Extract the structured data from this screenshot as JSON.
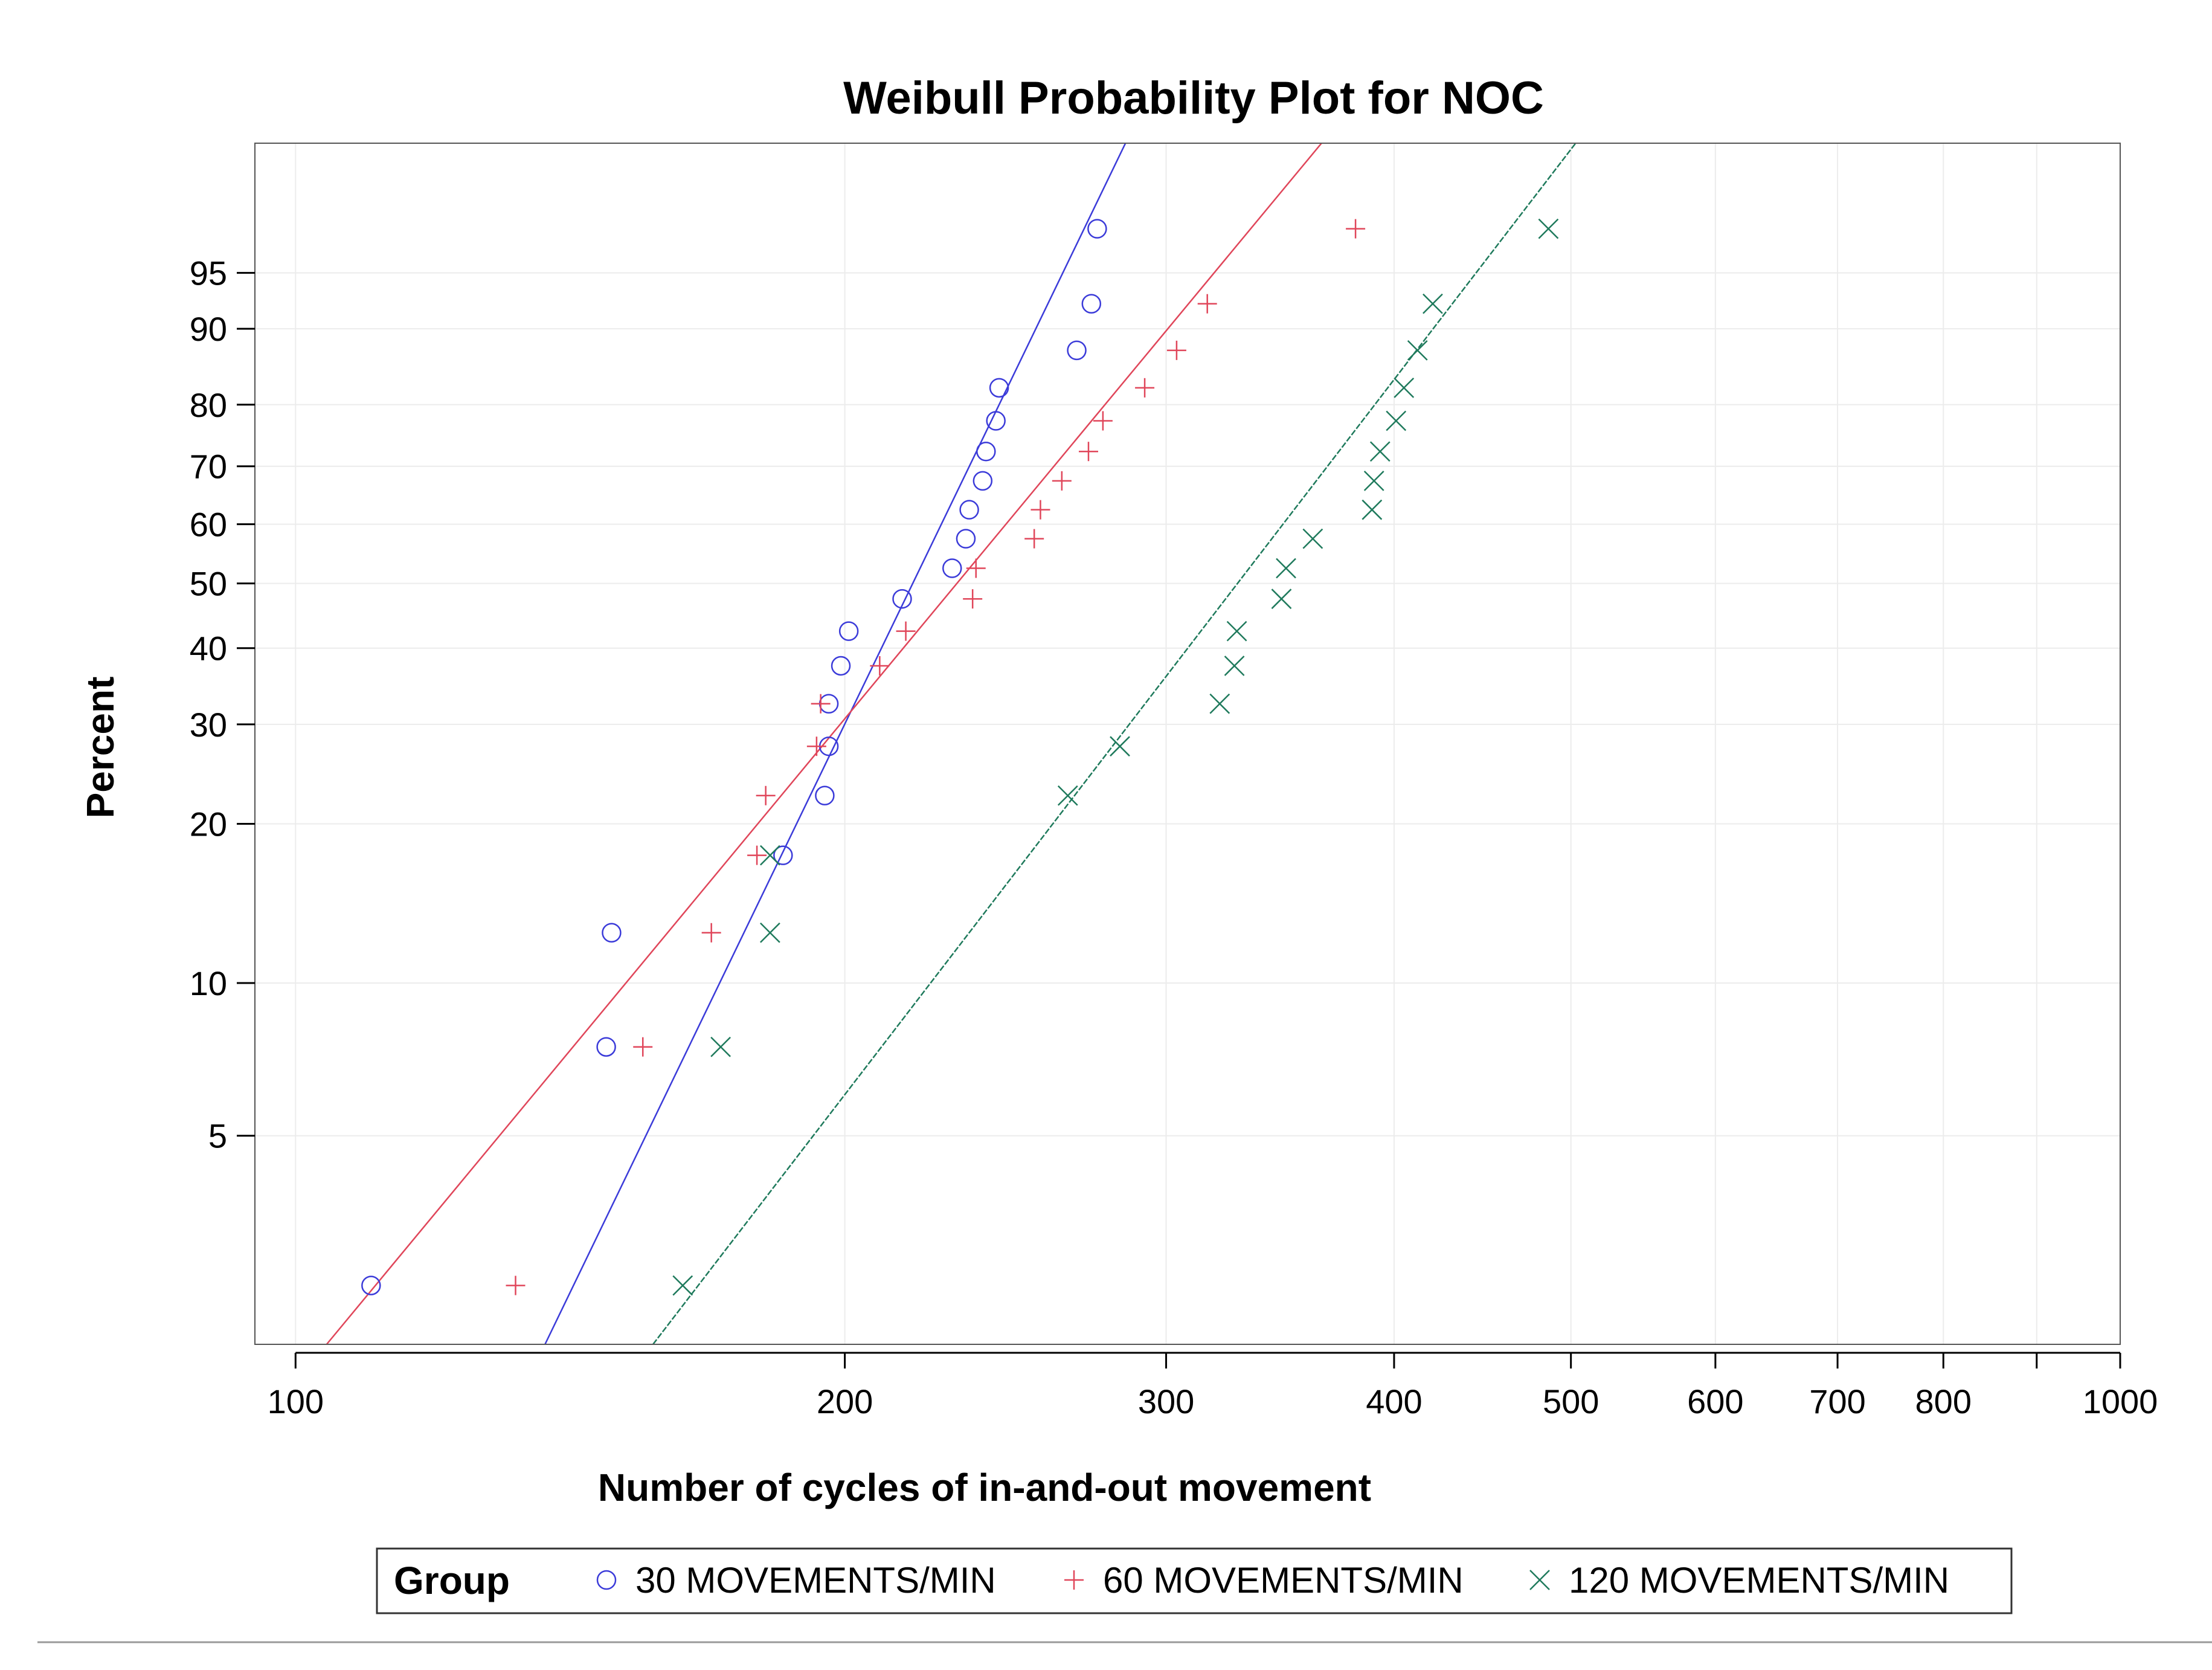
{
  "chart_data": {
    "type": "scatter",
    "title": "Weibull Probability Plot for NOC",
    "xlabel": "Number of cycles of in-and-out movement",
    "ylabel": "Percent",
    "x_scale": "log",
    "y_scale": "weibull",
    "xlim": [
      95,
      1000
    ],
    "ylim": [
      1.9,
      99.6
    ],
    "x_ticks": [
      100,
      200,
      300,
      400,
      500,
      600,
      700,
      800,
      900,
      1000
    ],
    "x_tick_labels": [
      "100",
      "200",
      "300",
      "400",
      "500",
      "600",
      "700",
      "800",
      "",
      "1000"
    ],
    "y_ticks": [
      5,
      10,
      20,
      30,
      40,
      50,
      60,
      70,
      80,
      90,
      95
    ],
    "y_tick_labels": [
      "5",
      "10",
      "20",
      "30",
      "40",
      "50",
      "60",
      "70",
      "80",
      "90",
      "95"
    ],
    "grid": true,
    "legend": {
      "title": "Group",
      "position": "bottom"
    },
    "series": [
      {
        "name": "30 MOVEMENTS/MIN",
        "marker": "circle",
        "color": "#3b3bd9",
        "points": [
          {
            "x": 110,
            "y": 2.5
          },
          {
            "x": 148,
            "y": 7.5
          },
          {
            "x": 149,
            "y": 12.5
          },
          {
            "x": 185,
            "y": 17.5
          },
          {
            "x": 195,
            "y": 22.5
          },
          {
            "x": 196,
            "y": 27.5
          },
          {
            "x": 196,
            "y": 32.5
          },
          {
            "x": 199,
            "y": 37.5
          },
          {
            "x": 201,
            "y": 42.5
          },
          {
            "x": 215,
            "y": 47.5
          },
          {
            "x": 229,
            "y": 52.5
          },
          {
            "x": 233,
            "y": 57.5
          },
          {
            "x": 234,
            "y": 62.5
          },
          {
            "x": 238,
            "y": 67.5
          },
          {
            "x": 239,
            "y": 72.5
          },
          {
            "x": 242,
            "y": 77.5
          },
          {
            "x": 243,
            "y": 82.5
          },
          {
            "x": 268,
            "y": 87.5
          },
          {
            "x": 273,
            "y": 92.5
          },
          {
            "x": 275,
            "y": 97.5
          }
        ],
        "fit": {
          "x1": 137,
          "y1": 1.9,
          "x2": 285,
          "y2": 99.6
        }
      },
      {
        "name": "60 MOVEMENTS/MIN",
        "marker": "plus",
        "color": "#e0465a",
        "points": [
          {
            "x": 132,
            "y": 2.5
          },
          {
            "x": 155,
            "y": 7.5
          },
          {
            "x": 169,
            "y": 12.5
          },
          {
            "x": 179,
            "y": 17.5
          },
          {
            "x": 181,
            "y": 22.5
          },
          {
            "x": 193,
            "y": 27.5
          },
          {
            "x": 194,
            "y": 32.5
          },
          {
            "x": 209,
            "y": 37.5
          },
          {
            "x": 216,
            "y": 42.5
          },
          {
            "x": 235,
            "y": 47.5
          },
          {
            "x": 236,
            "y": 52.5
          },
          {
            "x": 254,
            "y": 57.5
          },
          {
            "x": 256,
            "y": 62.5
          },
          {
            "x": 263,
            "y": 67.5
          },
          {
            "x": 272,
            "y": 72.5
          },
          {
            "x": 277,
            "y": 77.5
          },
          {
            "x": 292,
            "y": 82.5
          },
          {
            "x": 304,
            "y": 87.5
          },
          {
            "x": 316,
            "y": 92.5
          },
          {
            "x": 381,
            "y": 97.5
          }
        ],
        "fit": {
          "x1": 104,
          "y1": 1.9,
          "x2": 365,
          "y2": 99.6
        }
      },
      {
        "name": "120 MOVEMENTS/MIN",
        "marker": "x",
        "color": "#1f7a5c",
        "points": [
          {
            "x": 163,
            "y": 2.5
          },
          {
            "x": 171,
            "y": 7.5
          },
          {
            "x": 182,
            "y": 12.5
          },
          {
            "x": 182,
            "y": 17.5
          },
          {
            "x": 265,
            "y": 22.5
          },
          {
            "x": 283,
            "y": 27.5
          },
          {
            "x": 321,
            "y": 32.5
          },
          {
            "x": 327,
            "y": 37.5
          },
          {
            "x": 328,
            "y": 42.5
          },
          {
            "x": 347,
            "y": 47.5
          },
          {
            "x": 349,
            "y": 52.5
          },
          {
            "x": 361,
            "y": 57.5
          },
          {
            "x": 389,
            "y": 62.5
          },
          {
            "x": 390,
            "y": 67.5
          },
          {
            "x": 393,
            "y": 72.5
          },
          {
            "x": 401,
            "y": 77.5
          },
          {
            "x": 405,
            "y": 82.5
          },
          {
            "x": 412,
            "y": 87.5
          },
          {
            "x": 420,
            "y": 92.5
          },
          {
            "x": 486,
            "y": 97.5
          }
        ],
        "fit": {
          "x1": 157,
          "y1": 1.9,
          "x2": 503,
          "y2": 99.6
        }
      }
    ]
  }
}
